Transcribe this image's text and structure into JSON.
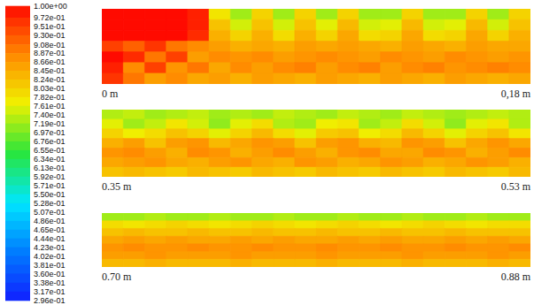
{
  "chart_data": {
    "type": "heatmap",
    "tick_labels": "x",
    "colorbar": {
      "range": [
        0.296,
        1.0
      ],
      "ticks": [
        {
          "value": 1.0,
          "label": "1.00e+00"
        },
        {
          "value": 0.972,
          "label": "9.72e-01"
        },
        {
          "value": 0.951,
          "label": "9.51e-01"
        },
        {
          "value": 0.93,
          "label": "9.30e-01"
        },
        {
          "value": 0.908,
          "label": "9.08e-01"
        },
        {
          "value": 0.887,
          "label": "8.87e-01"
        },
        {
          "value": 0.866,
          "label": "8.66e-01"
        },
        {
          "value": 0.845,
          "label": "8.45e-01"
        },
        {
          "value": 0.824,
          "label": "8.24e-01"
        },
        {
          "value": 0.803,
          "label": "8.03e-01"
        },
        {
          "value": 0.782,
          "label": "7.82e-01"
        },
        {
          "value": 0.761,
          "label": "7.61e-01"
        },
        {
          "value": 0.74,
          "label": "7.40e-01"
        },
        {
          "value": 0.719,
          "label": "7.19e-01"
        },
        {
          "value": 0.697,
          "label": "6.97e-01"
        },
        {
          "value": 0.676,
          "label": "6.76e-01"
        },
        {
          "value": 0.655,
          "label": "6.55e-01"
        },
        {
          "value": 0.634,
          "label": "6.34e-01"
        },
        {
          "value": 0.613,
          "label": "6.13e-01"
        },
        {
          "value": 0.592,
          "label": "5.92e-01"
        },
        {
          "value": 0.571,
          "label": "5.71e-01"
        },
        {
          "value": 0.55,
          "label": "5.50e-01"
        },
        {
          "value": 0.528,
          "label": "5.28e-01"
        },
        {
          "value": 0.507,
          "label": "5.07e-01"
        },
        {
          "value": 0.486,
          "label": "4.86e-01"
        },
        {
          "value": 0.465,
          "label": "4.65e-01"
        },
        {
          "value": 0.444,
          "label": "4.44e-01"
        },
        {
          "value": 0.423,
          "label": "4.23e-01"
        },
        {
          "value": 0.402,
          "label": "4.02e-01"
        },
        {
          "value": 0.381,
          "label": "3.81e-01"
        },
        {
          "value": 0.36,
          "label": "3.60e-01"
        },
        {
          "value": 0.338,
          "label": "3.38e-01"
        },
        {
          "value": 0.317,
          "label": "3.17e-01"
        },
        {
          "value": 0.296,
          "label": "2.96e-01"
        }
      ]
    },
    "panels": [
      {
        "xlim": [
          0,
          0.18
        ],
        "xticks": [
          {
            "value": 0,
            "label": "0 m"
          },
          {
            "value": 0.18,
            "label": "0,18 m"
          }
        ],
        "cells": [
          [
            1,
            1,
            1,
            1,
            0.98,
            0.78,
            0.72,
            0.8,
            0.72,
            0.8,
            0.72,
            0.8,
            0.72,
            0.72,
            0.8,
            0.72,
            0.72,
            0.8,
            0.72,
            0.8
          ],
          [
            1,
            1,
            1,
            1,
            0.98,
            0.82,
            0.75,
            0.82,
            0.75,
            0.82,
            0.76,
            0.83,
            0.75,
            0.76,
            0.83,
            0.75,
            0.76,
            0.83,
            0.75,
            0.82
          ],
          [
            1,
            1,
            1,
            1,
            0.97,
            0.84,
            0.8,
            0.84,
            0.79,
            0.84,
            0.8,
            0.85,
            0.79,
            0.8,
            0.85,
            0.79,
            0.8,
            0.85,
            0.8,
            0.84
          ],
          [
            0.95,
            0.92,
            0.96,
            0.9,
            0.88,
            0.86,
            0.84,
            0.85,
            0.84,
            0.86,
            0.85,
            0.86,
            0.85,
            0.84,
            0.86,
            0.85,
            0.84,
            0.86,
            0.85,
            0.85
          ],
          [
            1,
            0.97,
            0.9,
            0.95,
            0.86,
            0.88,
            0.87,
            0.88,
            0.86,
            0.87,
            0.88,
            0.87,
            0.86,
            0.88,
            0.87,
            0.86,
            0.88,
            0.87,
            0.86,
            0.87
          ],
          [
            0.98,
            0.88,
            0.95,
            0.87,
            0.9,
            0.85,
            0.88,
            0.86,
            0.88,
            0.89,
            0.86,
            0.88,
            0.89,
            0.86,
            0.88,
            0.89,
            0.87,
            0.88,
            0.89,
            0.88
          ],
          [
            0.96,
            0.9,
            0.86,
            0.88,
            0.85,
            0.86,
            0.84,
            0.86,
            0.85,
            0.84,
            0.86,
            0.85,
            0.84,
            0.86,
            0.85,
            0.84,
            0.86,
            0.85,
            0.84,
            0.85
          ]
        ]
      },
      {
        "xlim": [
          0.35,
          0.53
        ],
        "xticks": [
          {
            "value": 0.35,
            "label": "0.35 m"
          },
          {
            "value": 0.53,
            "label": "0.53 m"
          }
        ],
        "cells": [
          [
            0.73,
            0.74,
            0.72,
            0.73,
            0.74,
            0.72,
            0.73,
            0.72,
            0.74,
            0.73,
            0.72,
            0.74,
            0.73,
            0.72,
            0.74,
            0.73,
            0.72,
            0.73,
            0.74,
            0.73
          ],
          [
            0.76,
            0.72,
            0.74,
            0.78,
            0.75,
            0.71,
            0.76,
            0.79,
            0.73,
            0.72,
            0.77,
            0.78,
            0.72,
            0.74,
            0.79,
            0.75,
            0.71,
            0.76,
            0.78,
            0.73
          ],
          [
            0.8,
            0.77,
            0.79,
            0.82,
            0.8,
            0.76,
            0.8,
            0.83,
            0.79,
            0.76,
            0.81,
            0.82,
            0.77,
            0.79,
            0.83,
            0.8,
            0.76,
            0.8,
            0.82,
            0.78
          ],
          [
            0.84,
            0.86,
            0.82,
            0.86,
            0.87,
            0.83,
            0.85,
            0.87,
            0.86,
            0.82,
            0.86,
            0.87,
            0.84,
            0.83,
            0.87,
            0.86,
            0.82,
            0.85,
            0.87,
            0.85
          ],
          [
            0.87,
            0.88,
            0.86,
            0.84,
            0.88,
            0.87,
            0.84,
            0.86,
            0.88,
            0.86,
            0.84,
            0.87,
            0.88,
            0.85,
            0.85,
            0.88,
            0.87,
            0.84,
            0.86,
            0.88
          ],
          [
            0.85,
            0.86,
            0.87,
            0.85,
            0.84,
            0.86,
            0.87,
            0.85,
            0.84,
            0.87,
            0.86,
            0.84,
            0.85,
            0.87,
            0.86,
            0.84,
            0.85,
            0.87,
            0.86,
            0.84
          ],
          [
            0.82,
            0.83,
            0.82,
            0.81,
            0.83,
            0.82,
            0.81,
            0.83,
            0.82,
            0.81,
            0.83,
            0.82,
            0.81,
            0.83,
            0.82,
            0.81,
            0.83,
            0.82,
            0.81,
            0.83
          ]
        ]
      },
      {
        "xlim": [
          0.7,
          0.88
        ],
        "xticks": [
          {
            "value": 0.7,
            "label": "0.70 m"
          },
          {
            "value": 0.88,
            "label": "0.88 m"
          }
        ],
        "cells": [
          [
            0.72,
            0.72,
            0.73,
            0.72,
            0.72,
            0.73,
            0.72,
            0.72,
            0.73,
            0.72,
            0.72,
            0.73,
            0.72,
            0.72,
            0.73,
            0.72,
            0.72,
            0.73,
            0.72,
            0.72
          ],
          [
            0.79,
            0.78,
            0.79,
            0.8,
            0.79,
            0.78,
            0.79,
            0.8,
            0.79,
            0.78,
            0.79,
            0.8,
            0.79,
            0.78,
            0.79,
            0.8,
            0.79,
            0.78,
            0.79,
            0.79
          ],
          [
            0.82,
            0.83,
            0.82,
            0.82,
            0.83,
            0.82,
            0.82,
            0.83,
            0.82,
            0.82,
            0.83,
            0.82,
            0.82,
            0.83,
            0.82,
            0.82,
            0.83,
            0.82,
            0.82,
            0.82
          ],
          [
            0.85,
            0.86,
            0.85,
            0.86,
            0.85,
            0.85,
            0.86,
            0.85,
            0.86,
            0.85,
            0.85,
            0.86,
            0.85,
            0.86,
            0.85,
            0.85,
            0.86,
            0.85,
            0.86,
            0.85
          ],
          [
            0.87,
            0.88,
            0.87,
            0.87,
            0.88,
            0.87,
            0.87,
            0.88,
            0.87,
            0.87,
            0.88,
            0.87,
            0.87,
            0.88,
            0.87,
            0.87,
            0.88,
            0.87,
            0.87,
            0.88
          ],
          [
            0.86,
            0.86,
            0.87,
            0.86,
            0.86,
            0.86,
            0.87,
            0.86,
            0.86,
            0.86,
            0.87,
            0.86,
            0.86,
            0.86,
            0.87,
            0.86,
            0.86,
            0.86,
            0.87,
            0.86
          ],
          [
            0.83,
            0.83,
            0.84,
            0.83,
            0.83,
            0.83,
            0.84,
            0.83,
            0.83,
            0.83,
            0.84,
            0.83,
            0.83,
            0.83,
            0.84,
            0.83,
            0.83,
            0.83,
            0.84,
            0.83
          ]
        ]
      }
    ]
  }
}
